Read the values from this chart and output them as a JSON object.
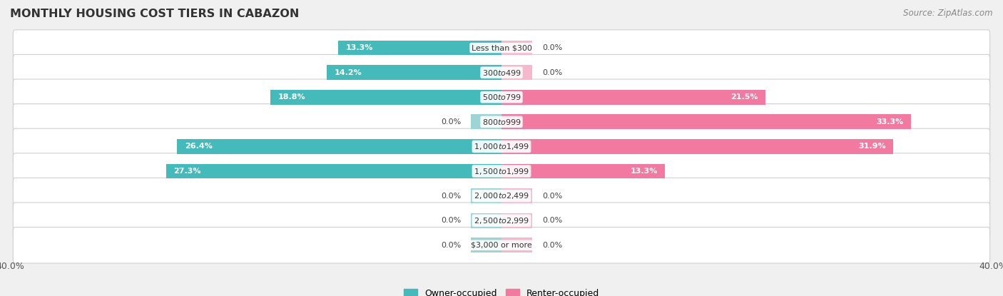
{
  "title": "MONTHLY HOUSING COST TIERS IN CABAZON",
  "source": "Source: ZipAtlas.com",
  "categories": [
    "Less than $300",
    "$300 to $499",
    "$500 to $799",
    "$800 to $999",
    "$1,000 to $1,499",
    "$1,500 to $1,999",
    "$2,000 to $2,499",
    "$2,500 to $2,999",
    "$3,000 or more"
  ],
  "owner_values": [
    13.3,
    14.2,
    18.8,
    0.0,
    26.4,
    27.3,
    0.0,
    0.0,
    0.0
  ],
  "renter_values": [
    0.0,
    0.0,
    21.5,
    33.3,
    31.9,
    13.3,
    0.0,
    0.0,
    0.0
  ],
  "owner_color": "#45BABA",
  "renter_color": "#F279A0",
  "owner_color_zero": "#9DD4D4",
  "renter_color_zero": "#F7B8CC",
  "axis_max": 40.0,
  "background_color": "#f0f0f0",
  "row_bg_color": "#ffffff",
  "title_fontsize": 11.5,
  "source_fontsize": 8.5,
  "value_fontsize": 8.0,
  "category_fontsize": 8.0,
  "legend_fontsize": 9,
  "axis_label_fontsize": 9,
  "zero_stub": 2.5
}
